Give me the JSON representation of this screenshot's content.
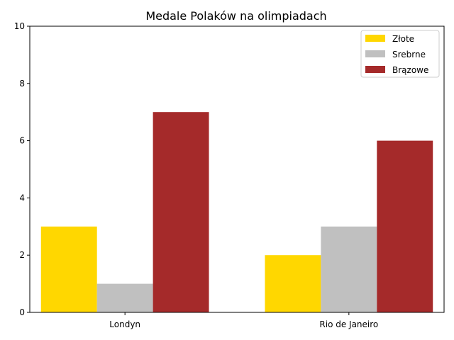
{
  "chart_data": {
    "type": "bar",
    "title": "Medale Polaków na olimpiadach",
    "xlabel": "",
    "ylabel": "",
    "categories": [
      "Londyn",
      "Rio de Janeiro"
    ],
    "series": [
      {
        "name": "Złote",
        "values": [
          3,
          2
        ],
        "color": "#FFD700"
      },
      {
        "name": "Srebrne",
        "values": [
          1,
          3
        ],
        "color": "#C0C0C0"
      },
      {
        "name": "Brązowe",
        "values": [
          7,
          6
        ],
        "color": "#A52A2A"
      }
    ],
    "ylim": [
      0,
      10
    ],
    "yticks": [
      "0",
      "2",
      "4",
      "6",
      "8",
      "10"
    ],
    "grid": false,
    "legend_position": "top-right"
  }
}
